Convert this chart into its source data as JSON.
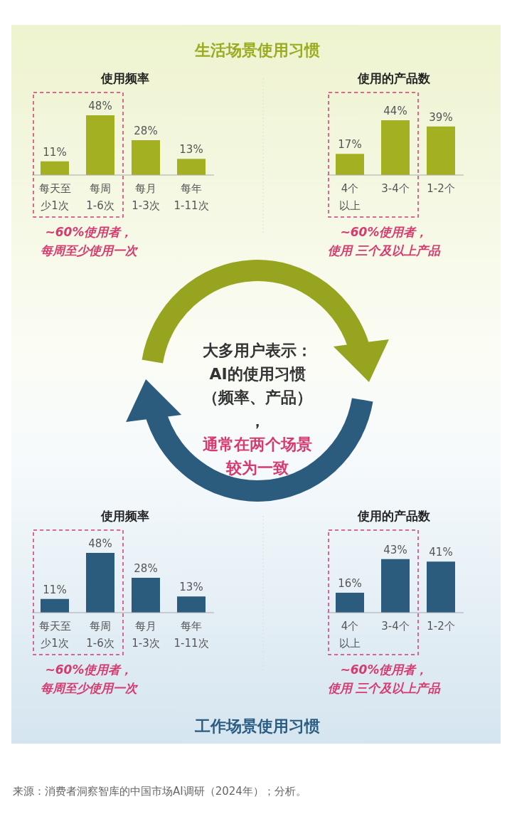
{
  "chart_data": [
    {
      "type": "bar",
      "title": "使用频率",
      "categories": [
        "每天至少1次",
        "每周1-6次",
        "每月1-3次",
        "每年1-11次"
      ],
      "values": [
        11,
        48,
        28,
        13
      ],
      "value_labels": [
        "11%",
        "48%",
        "28%",
        "13%"
      ],
      "color": "#a3b022",
      "annotations": [
        "~60%使用者，每周至少使用一次"
      ]
    },
    {
      "type": "bar",
      "title": "使用的产品数",
      "categories": [
        "4个以上",
        "3-4个",
        "1-2个"
      ],
      "values": [
        17,
        44,
        39
      ],
      "value_labels": [
        "17%",
        "44%",
        "39%"
      ],
      "color": "#a3b022",
      "annotations": [
        "~60%使用者，使用 三个及以上产品"
      ]
    },
    {
      "type": "bar",
      "title": "使用频率",
      "categories": [
        "每天至少1次",
        "每周1-6次",
        "每月1-3次",
        "每年1-11次"
      ],
      "values": [
        11,
        48,
        28,
        13
      ],
      "value_labels": [
        "11%",
        "48%",
        "28%",
        "13%"
      ],
      "color": "#2b5c7e",
      "annotations": [
        "~60%使用者，每周至少使用一次"
      ]
    },
    {
      "type": "bar",
      "title": "使用的产品数",
      "categories": [
        "4个以上",
        "3-4个",
        "1-2个"
      ],
      "values": [
        16,
        43,
        41
      ],
      "value_labels": [
        "16%",
        "43%",
        "41%"
      ],
      "color": "#2b5c7e",
      "annotations": [
        "~60%使用者，使用 三个及以上产品"
      ]
    },
    {
      "type": "other",
      "title": "大多用户表示：AI的使用习惯（频率、产品），",
      "subtitle": "通常在两个场景较为一致",
      "annotations": [
        "生活场景使用习惯",
        "工作场景使用习惯",
        "来源：消费者洞察智库的中国市场AI调研（2024年）；分析。"
      ]
    }
  ]
}
